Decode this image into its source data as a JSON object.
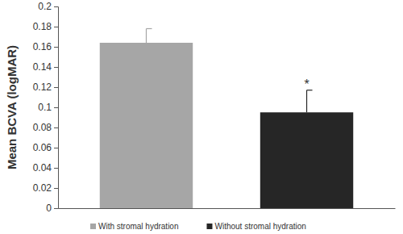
{
  "chart_data": {
    "type": "bar",
    "y_label": "Mean BCVA (logMAR)",
    "categories": [
      null
    ],
    "series": [
      {
        "name": "With stromal hydration",
        "color": "#a6a6a6",
        "values": [
          0.164
        ],
        "errors": [
          0.014
        ]
      },
      {
        "name": "Without stromal hydration",
        "color": "#262626",
        "values": [
          0.095
        ],
        "errors": [
          0.022
        ],
        "annotation": "*"
      }
    ],
    "ylim": [
      0,
      0.2
    ],
    "yticks": [
      0,
      0.02,
      0.04,
      0.06,
      0.08,
      0.1,
      0.12,
      0.14,
      0.16,
      0.18,
      0.2
    ],
    "grid": false,
    "legend": "bottom"
  }
}
